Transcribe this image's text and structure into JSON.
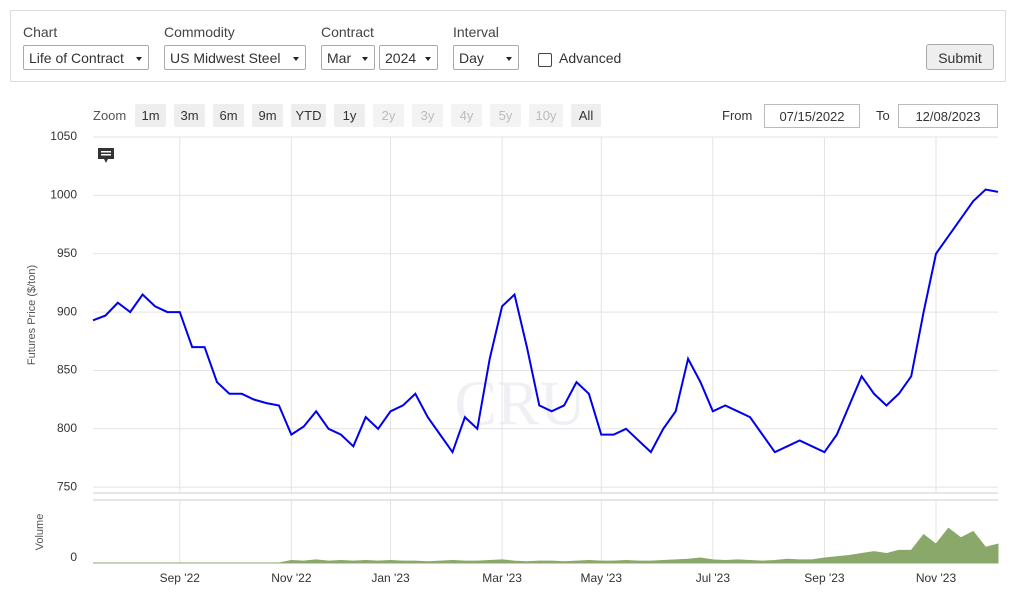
{
  "controls": [
    {
      "label": "Chart",
      "value": "Life of Contract"
    },
    {
      "label": "Commodity",
      "value": "US Midwest Steel"
    },
    {
      "label": "Contract",
      "values": [
        "Mar",
        "2024"
      ]
    },
    {
      "label": "Interval",
      "value": "Day"
    }
  ],
  "advanced": "Advanced",
  "submit": "Submit",
  "zoom": {
    "label": "Zoom",
    "buttons": [
      "1m",
      "3m",
      "6m",
      "9m",
      "YTD",
      "1y",
      "2y",
      "3y",
      "4y",
      "5y",
      "10y",
      "All"
    ]
  },
  "range": {
    "from_label": "From",
    "from": "07/15/2022",
    "to_label": "To",
    "to": "12/08/2023"
  },
  "watermark": "CRU",
  "chart_data": [
    {
      "type": "line",
      "y_label": "Futures Price ($/ton)",
      "color": "#0000ee",
      "grid": true,
      "categories": [
        null,
        null,
        null,
        null,
        null,
        null,
        null,
        "Sep '22",
        null,
        null,
        null,
        null,
        null,
        null,
        null,
        null,
        "Nov '22",
        null,
        null,
        null,
        null,
        null,
        null,
        null,
        "Jan '23",
        null,
        null,
        null,
        null,
        null,
        null,
        null,
        null,
        "Mar '23",
        null,
        null,
        null,
        null,
        null,
        null,
        null,
        "May '23",
        null,
        null,
        null,
        null,
        null,
        null,
        null,
        null,
        "Jul '23",
        null,
        null,
        null,
        null,
        null,
        null,
        null,
        null,
        "Sep '23",
        null,
        null,
        null,
        null,
        null,
        null,
        null,
        null,
        "Nov '23",
        null,
        null,
        null,
        null,
        null
      ],
      "values": [
        893,
        897,
        908,
        900,
        915,
        905,
        900,
        900,
        870,
        870,
        840,
        830,
        830,
        825,
        822,
        820,
        795,
        802,
        815,
        800,
        795,
        785,
        810,
        800,
        815,
        820,
        830,
        810,
        795,
        780,
        810,
        800,
        860,
        905,
        915,
        870,
        820,
        815,
        820,
        840,
        830,
        795,
        795,
        800,
        790,
        780,
        800,
        815,
        860,
        840,
        815,
        820,
        815,
        810,
        795,
        780,
        785,
        790,
        785,
        780,
        795,
        820,
        845,
        830,
        820,
        830,
        845,
        900,
        950,
        965,
        980,
        995,
        1005,
        1003
      ],
      "ylim": [
        745,
        1050
      ],
      "yticks": [
        750,
        800,
        850,
        900,
        950,
        1000,
        1050
      ]
    },
    {
      "type": "area",
      "y_label": "Volume",
      "color": "#8aa86a",
      "values": [
        0,
        0,
        0,
        0,
        0,
        0,
        0,
        0,
        0,
        0,
        0,
        0,
        0,
        0,
        0,
        0,
        4,
        3,
        5,
        3,
        4,
        3,
        4,
        3,
        4,
        3,
        3,
        2,
        3,
        4,
        3,
        3,
        4,
        5,
        3,
        2,
        3,
        3,
        2,
        3,
        4,
        3,
        3,
        4,
        3,
        3,
        4,
        5,
        6,
        8,
        5,
        4,
        5,
        4,
        3,
        4,
        6,
        5,
        5,
        8,
        10,
        12,
        15,
        18,
        15,
        20,
        20,
        45,
        30,
        55,
        40,
        50,
        25,
        30
      ],
      "ylim": [
        0,
        100
      ],
      "yticks": [
        0
      ]
    }
  ]
}
